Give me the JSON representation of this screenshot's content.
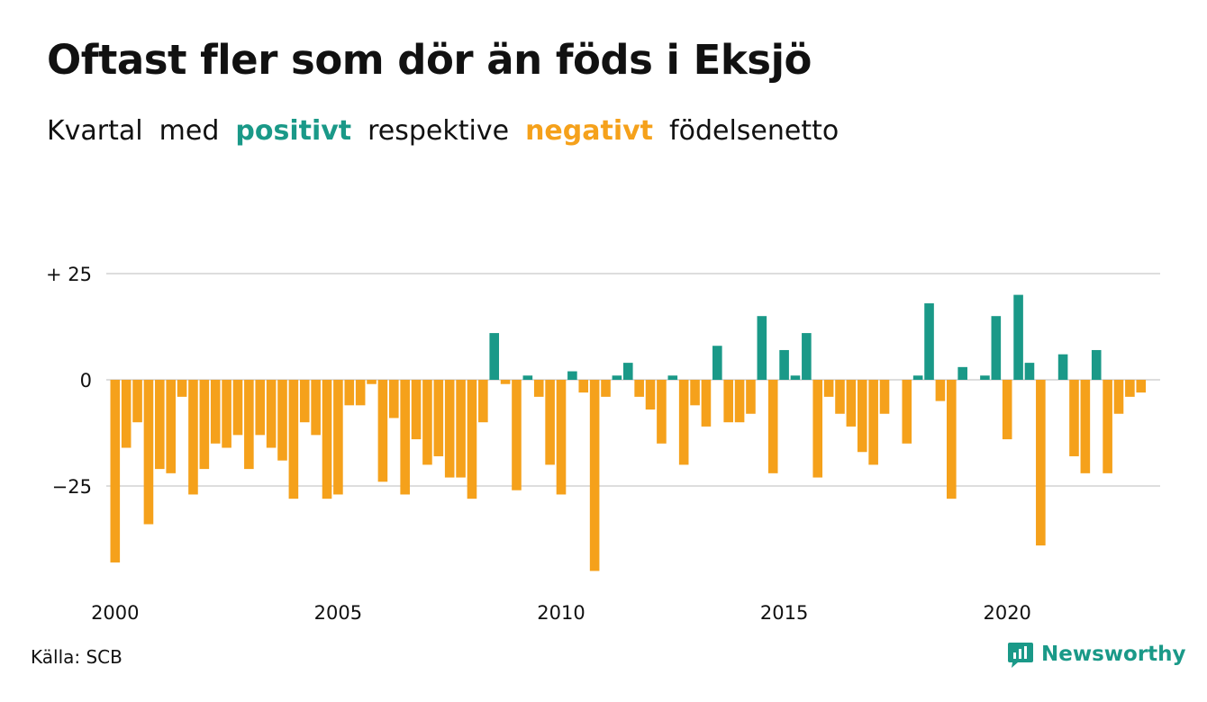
{
  "title": "Oftast fler som dör än föds i Eksjö",
  "subtitle": {
    "w1": "Kvartal",
    "w2": "med",
    "positive": "positivt",
    "w3": "respektive",
    "negative": "negativt",
    "w4": "födelsenetto"
  },
  "source": "Källa: SCB",
  "brand": {
    "name": "Newsworthy",
    "icon": "newsworthy-logo-icon"
  },
  "colors": {
    "positive": "#1a9988",
    "negative": "#f5a11b",
    "grid": "#dddddd",
    "text": "#111111"
  },
  "chart_data": {
    "type": "bar",
    "title": "Oftast fler som dör än föds i Eksjö",
    "xlabel": "",
    "ylabel": "",
    "x_ticks": [
      "2000",
      "2005",
      "2010",
      "2015",
      "2020"
    ],
    "y_ticks": [
      {
        "value": 25,
        "label": "+ 25"
      },
      {
        "value": 0,
        "label": "0"
      },
      {
        "value": -25,
        "label": "−25"
      }
    ],
    "ylim": [
      -45,
      25
    ],
    "grid": true,
    "x_start": "2000 Q1",
    "frequency": "quarterly",
    "values": [
      -43,
      -16,
      -10,
      -34,
      -21,
      -22,
      -4,
      -27,
      -21,
      -15,
      -16,
      -13,
      -21,
      -13,
      -16,
      -19,
      -28,
      -10,
      -13,
      -28,
      -27,
      -6,
      -6,
      -1,
      -24,
      -9,
      -27,
      -14,
      -20,
      -18,
      -23,
      -23,
      -28,
      -10,
      11,
      -1,
      -26,
      1,
      -4,
      -20,
      -27,
      2,
      -3,
      -45,
      -4,
      1,
      4,
      -4,
      -7,
      -15,
      1,
      -20,
      -6,
      -11,
      8,
      -10,
      -10,
      -8,
      15,
      -22,
      7,
      1,
      11,
      -23,
      -4,
      -8,
      -11,
      -17,
      -20,
      -8,
      0,
      -15,
      1,
      18,
      -5,
      -28,
      3,
      0,
      1,
      15,
      -14,
      20,
      4,
      -39,
      0,
      6,
      -18,
      -22,
      7,
      -22,
      -8,
      -4,
      -3
    ]
  }
}
